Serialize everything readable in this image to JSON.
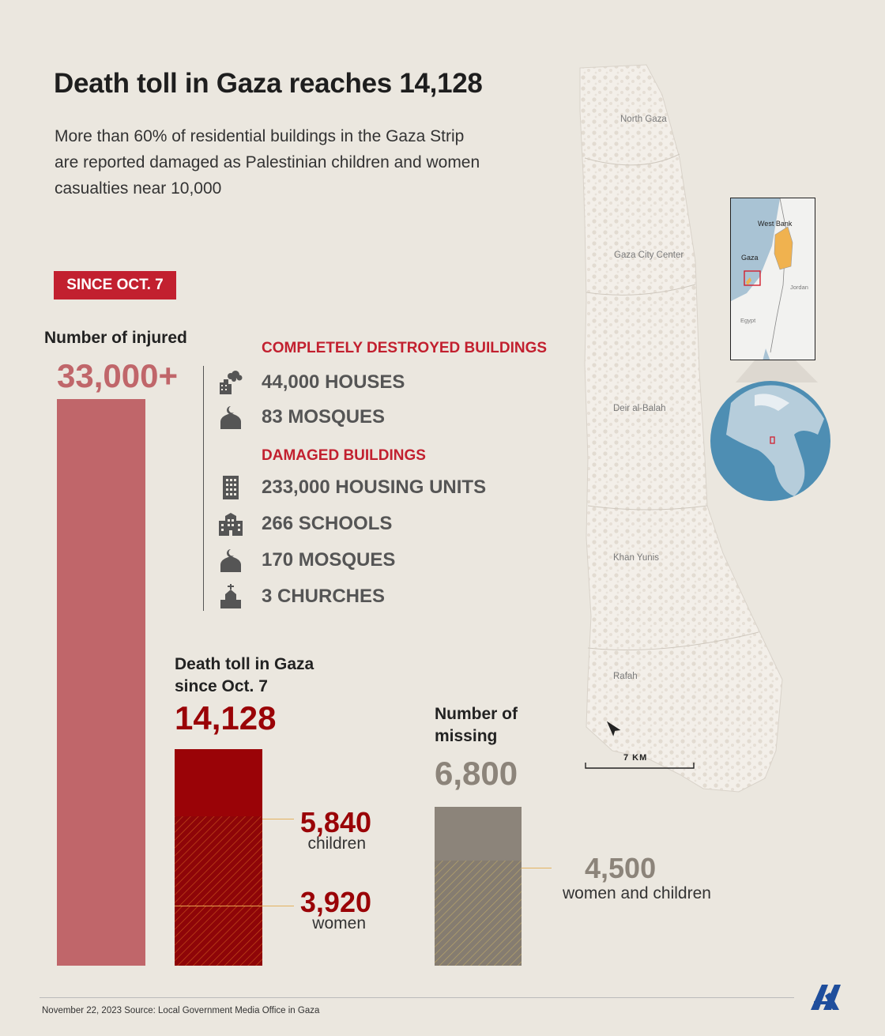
{
  "title": "Death toll in Gaza reaches 14,128",
  "subtitle": "More than 60% of residential buildings in the Gaza Strip are reported damaged as Palestinian children and women casualties near 10,000",
  "badge": "SINCE OCT. 7",
  "colors": {
    "accent": "#c2202f",
    "injured": "#c0666a",
    "death": "#9a0307",
    "missing": "#8c847a",
    "background": "#ebe7df"
  },
  "chart_data": {
    "type": "bar",
    "injured": {
      "label": "Number of injured",
      "value_text": "33,000+",
      "value": 33000
    },
    "death": {
      "label_line1": "Death toll in Gaza",
      "label_line2": "since Oct. 7",
      "value_text": "14,128",
      "value": 14128,
      "segments": [
        {
          "value_text": "5,840",
          "label": "children",
          "value": 5840
        },
        {
          "value_text": "3,920",
          "label": "women",
          "value": 3920
        }
      ]
    },
    "missing": {
      "label_line1": "Number of",
      "label_line2": "missing",
      "value_text": "6,800",
      "value": 6800,
      "segment": {
        "value_text": "4,500",
        "label": "women and children",
        "value": 4500
      }
    }
  },
  "buildings": {
    "destroyed_heading": "COMPLETELY DESTROYED BUILDINGS",
    "destroyed": [
      {
        "icon": "destroyed-building-icon",
        "text": "44,000 HOUSES"
      },
      {
        "icon": "mosque-icon",
        "text": "83 MOSQUES"
      }
    ],
    "damaged_heading": "DAMAGED BUILDINGS",
    "damaged": [
      {
        "icon": "apartment-building-icon",
        "text": "233,000 HOUSING UNITS"
      },
      {
        "icon": "school-icon",
        "text": "266 SCHOOLS"
      },
      {
        "icon": "mosque-icon",
        "text": "170 MOSQUES"
      },
      {
        "icon": "church-icon",
        "text": "3 CHURCHES"
      }
    ]
  },
  "map": {
    "labels": [
      "North Gaza",
      "Gaza City Center",
      "Deir al-Balah",
      "Khan Yunis",
      "Rafah"
    ],
    "inset_labels": [
      "West Bank",
      "Gaza",
      "Jordan",
      "Egypt"
    ],
    "scale": "7 KM",
    "north": "N"
  },
  "footer": "November 22, 2023  Source: Local Government Media Office in Gaza",
  "logo": "AA"
}
